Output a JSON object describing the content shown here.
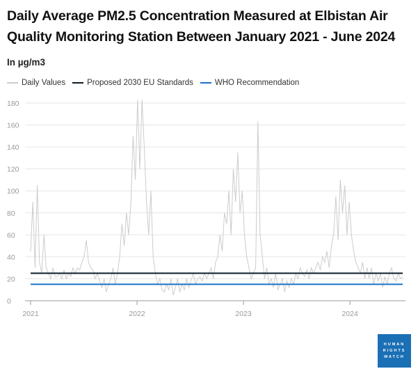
{
  "title": "Daily Average PM2.5 Concentration Measured at Elbistan Air Quality Monitoring Station Between January 2021 - June 2024",
  "subtitle": "In µg/m3",
  "logo": {
    "lines": [
      "HUMAN",
      "RIGHTS",
      "WATCH"
    ],
    "color": "#1a6fb5"
  },
  "chart_data": {
    "type": "line",
    "title": "Daily Average PM2.5 Concentration Measured at Elbistan Air Quality Monitoring Station Between January 2021 - June 2024",
    "ylabel": "In µg/m3",
    "ylim": [
      0,
      180
    ],
    "yticks": [
      "0",
      "20",
      "40",
      "60",
      "80",
      "100",
      "120",
      "140",
      "160",
      "180"
    ],
    "xlim": [
      "2021-01-01",
      "2024-06-30"
    ],
    "xticks": [
      "2021",
      "2022",
      "2023",
      "2024"
    ],
    "grid": true,
    "legend_placement": "top-left",
    "series": [
      {
        "name": "Daily Values",
        "color": "#cccccc",
        "x_start": "2021-01-01",
        "x_end": "2024-06-30",
        "values": [
          45,
          90,
          30,
          105,
          35,
          25,
          60,
          30,
          25,
          20,
          30,
          22,
          22,
          25,
          20,
          28,
          20,
          25,
          22,
          30,
          25,
          30,
          28,
          35,
          40,
          55,
          35,
          30,
          28,
          20,
          25,
          18,
          12,
          20,
          8,
          15,
          20,
          30,
          15,
          25,
          40,
          70,
          50,
          80,
          60,
          90,
          150,
          110,
          183,
          120,
          183,
          140,
          90,
          60,
          100,
          40,
          25,
          15,
          20,
          10,
          8,
          15,
          10,
          20,
          5,
          12,
          20,
          8,
          15,
          10,
          20,
          12,
          18,
          25,
          15,
          20,
          22,
          18,
          25,
          20,
          25,
          30,
          20,
          35,
          40,
          60,
          45,
          80,
          70,
          100,
          60,
          120,
          90,
          135,
          80,
          100,
          60,
          40,
          30,
          20,
          25,
          30,
          163,
          60,
          40,
          20,
          30,
          15,
          20,
          12,
          25,
          10,
          15,
          20,
          8,
          18,
          12,
          20,
          15,
          25,
          20,
          30,
          25,
          22,
          28,
          20,
          30,
          25,
          30,
          35,
          28,
          40,
          35,
          45,
          30,
          50,
          60,
          95,
          55,
          110,
          80,
          105,
          60,
          90,
          60,
          45,
          35,
          30,
          25,
          35,
          20,
          30,
          20,
          30,
          15,
          25,
          18,
          25,
          12,
          22,
          15,
          25,
          30,
          20,
          18,
          25,
          20,
          22
        ]
      },
      {
        "name": "Proposed 2030 EU Standards",
        "color": "#0d1b2a",
        "values": [
          25,
          25
        ]
      },
      {
        "name": "WHO Recommendation",
        "color": "#1a73c8",
        "values": [
          15,
          15
        ]
      }
    ]
  }
}
